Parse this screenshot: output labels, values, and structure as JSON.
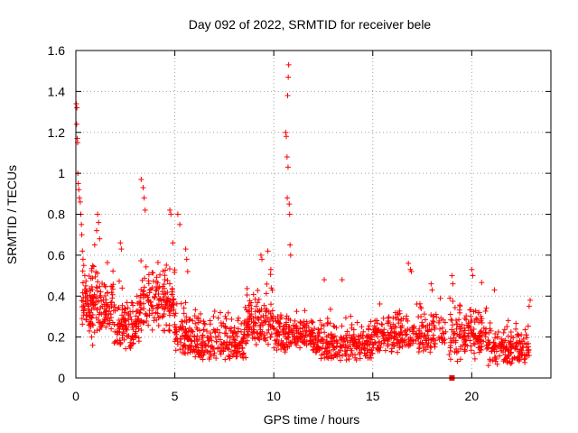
{
  "chart_data": {
    "type": "scatter",
    "title": "Day 092 of 2022, SRMTID for receiver bele",
    "xlabel": "GPS time / hours",
    "ylabel": "SRMTID / TECUs",
    "xlim": [
      0,
      24
    ],
    "ylim": [
      0,
      1.6
    ],
    "xticks": [
      0,
      5,
      10,
      15,
      20
    ],
    "xtick_labels": [
      "0",
      "5",
      "10",
      "15",
      "20"
    ],
    "yticks": [
      0,
      0.2,
      0.4,
      0.6,
      0.8,
      1.0,
      1.2,
      1.4,
      1.6
    ],
    "ytick_labels": [
      "0",
      "0.2",
      "0.4",
      "0.6",
      "0.8",
      "1",
      "1.2",
      "1.4",
      "1.6"
    ],
    "grid": true,
    "marker": "plus",
    "color": "#ff0000",
    "series": [
      {
        "name": "SRMTID",
        "points": [
          [
            0.02,
            1.34
          ],
          [
            0.05,
            1.32
          ],
          [
            0.04,
            1.24
          ],
          [
            0.07,
            1.17
          ],
          [
            0.09,
            1.15
          ],
          [
            0.1,
            1.0
          ],
          [
            0.12,
            0.95
          ],
          [
            0.15,
            0.92
          ],
          [
            0.18,
            0.88
          ],
          [
            0.22,
            0.86
          ],
          [
            0.25,
            0.8
          ],
          [
            0.28,
            0.75
          ],
          [
            0.3,
            0.7
          ],
          [
            0.33,
            0.62
          ],
          [
            0.36,
            0.58
          ],
          [
            0.4,
            0.55
          ],
          [
            0.45,
            0.5
          ],
          [
            0.5,
            0.45
          ],
          [
            0.55,
            0.42
          ],
          [
            0.6,
            0.38
          ],
          [
            0.65,
            0.35
          ],
          [
            0.7,
            0.3
          ],
          [
            0.75,
            0.25
          ],
          [
            0.8,
            0.2
          ],
          [
            0.85,
            0.16
          ],
          [
            0.95,
            0.65
          ],
          [
            1.05,
            0.72
          ],
          [
            1.1,
            0.8
          ],
          [
            1.15,
            0.76
          ],
          [
            1.2,
            0.68
          ],
          [
            2.25,
            0.66
          ],
          [
            2.3,
            0.63
          ],
          [
            3.3,
            0.97
          ],
          [
            3.4,
            0.93
          ],
          [
            3.45,
            0.88
          ],
          [
            3.5,
            0.82
          ],
          [
            4.75,
            0.82
          ],
          [
            4.8,
            0.8
          ],
          [
            4.9,
            0.66
          ],
          [
            5.15,
            0.8
          ],
          [
            5.25,
            0.75
          ],
          [
            5.55,
            0.63
          ],
          [
            5.6,
            0.58
          ],
          [
            5.65,
            0.52
          ],
          [
            9.35,
            0.6
          ],
          [
            9.4,
            0.58
          ],
          [
            9.7,
            0.62
          ],
          [
            9.85,
            0.53
          ],
          [
            10.6,
            1.2
          ],
          [
            10.63,
            1.18
          ],
          [
            10.67,
            1.08
          ],
          [
            10.7,
            1.38
          ],
          [
            10.73,
            1.47
          ],
          [
            10.75,
            1.53
          ],
          [
            10.72,
            1.03
          ],
          [
            10.68,
            0.88
          ],
          [
            10.78,
            0.85
          ],
          [
            10.8,
            0.8
          ],
          [
            10.82,
            0.65
          ],
          [
            10.85,
            0.6
          ],
          [
            12.55,
            0.48
          ],
          [
            13.45,
            0.48
          ],
          [
            16.8,
            0.56
          ],
          [
            16.9,
            0.53
          ],
          [
            16.95,
            0.52
          ],
          [
            17.95,
            0.46
          ],
          [
            18.0,
            0.43
          ],
          [
            19.0,
            0.5
          ],
          [
            19.05,
            0.46
          ],
          [
            20.0,
            0.53
          ],
          [
            20.05,
            0.5
          ],
          [
            21.15,
            0.43
          ],
          [
            22.95,
            0.38
          ],
          [
            22.9,
            0.35
          ],
          [
            19.0,
            0.0
          ],
          [
            19.02,
            0.0
          ]
        ],
        "dense_bands": [
          {
            "x": [
              0.3,
              1.9
            ],
            "y": [
              0.22,
              0.62
            ],
            "count": 160
          },
          {
            "x": [
              1.9,
              3.2
            ],
            "y": [
              0.13,
              0.52
            ],
            "count": 120
          },
          {
            "x": [
              3.2,
              5.0
            ],
            "y": [
              0.22,
              0.68
            ],
            "count": 170
          },
          {
            "x": [
              5.0,
              5.8
            ],
            "y": [
              0.1,
              0.45
            ],
            "count": 60
          },
          {
            "x": [
              5.5,
              8.6
            ],
            "y": [
              0.08,
              0.4
            ],
            "count": 240
          },
          {
            "x": [
              8.6,
              10.0
            ],
            "y": [
              0.15,
              0.55
            ],
            "count": 120
          },
          {
            "x": [
              10.0,
              12.0
            ],
            "y": [
              0.12,
              0.4
            ],
            "count": 170
          },
          {
            "x": [
              12.0,
              15.0
            ],
            "y": [
              0.08,
              0.35
            ],
            "count": 230
          },
          {
            "x": [
              15.0,
              18.7
            ],
            "y": [
              0.12,
              0.42
            ],
            "count": 260
          },
          {
            "x": [
              18.8,
              20.8
            ],
            "y": [
              0.08,
              0.48
            ],
            "count": 150
          },
          {
            "x": [
              20.8,
              22.9
            ],
            "y": [
              0.06,
              0.32
            ],
            "count": 170
          }
        ]
      }
    ]
  }
}
